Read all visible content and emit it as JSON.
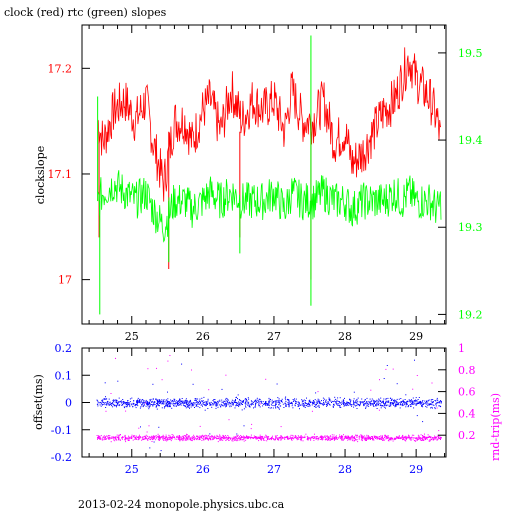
{
  "title": "clock (red) rtc (green) slopes",
  "footer": "2013-02-24 monopole.physics.ubc.ca",
  "colors": {
    "clock": "#ff0000",
    "rtc": "#00ff00",
    "offset": "#0000ff",
    "rndtrip": "#ff00ff",
    "axis": "#000000"
  },
  "chart_data": [
    {
      "type": "line",
      "ylabel": "clockslope",
      "y2label": "",
      "xlim": [
        24.3,
        29.42
      ],
      "ylim": [
        16.958,
        17.241
      ],
      "y2lim": [
        19.189,
        19.532
      ],
      "x_ticks": [
        "25",
        "26",
        "27",
        "28",
        "29"
      ],
      "y_ticks": [
        "17",
        "17.1",
        "17.2"
      ],
      "y2_ticks": [
        "19.2",
        "19.3",
        "19.4",
        "19.5"
      ],
      "series": [
        {
          "axis": "left",
          "points": [
            [
              24.52,
              17.15
            ],
            [
              24.6,
              17.13
            ],
            [
              24.75,
              17.16
            ],
            [
              24.9,
              17.17
            ],
            [
              25.05,
              17.15
            ],
            [
              25.2,
              17.17
            ],
            [
              25.3,
              17.13
            ],
            [
              25.45,
              17.09
            ],
            [
              25.6,
              17.15
            ],
            [
              25.75,
              17.15
            ],
            [
              25.85,
              17.13
            ],
            [
              26.0,
              17.16
            ],
            [
              26.1,
              17.17
            ],
            [
              26.25,
              17.14
            ],
            [
              26.4,
              17.18
            ],
            [
              26.55,
              17.15
            ],
            [
              26.7,
              17.17
            ],
            [
              26.85,
              17.16
            ],
            [
              27.0,
              17.17
            ],
            [
              27.15,
              17.14
            ],
            [
              27.25,
              17.18
            ],
            [
              27.4,
              17.15
            ],
            [
              27.55,
              17.15
            ],
            [
              27.7,
              17.17
            ],
            [
              27.85,
              17.13
            ],
            [
              28.0,
              17.14
            ],
            [
              28.1,
              17.11
            ],
            [
              28.25,
              17.12
            ],
            [
              28.4,
              17.14
            ],
            [
              28.55,
              17.16
            ],
            [
              28.7,
              17.17
            ],
            [
              28.8,
              17.19
            ],
            [
              28.9,
              17.21
            ],
            [
              29.0,
              17.19
            ],
            [
              29.1,
              17.18
            ],
            [
              29.2,
              17.17
            ],
            [
              29.3,
              17.15
            ],
            [
              29.35,
              17.13
            ]
          ],
          "spikes": [
            [
              24.54,
              17.04
            ],
            [
              25.52,
              17.01
            ],
            [
              26.52,
              17.04
            ],
            [
              27.52,
              17.0
            ]
          ]
        },
        {
          "axis": "right",
          "points": [
            [
              24.52,
              19.33
            ],
            [
              24.6,
              19.34
            ],
            [
              24.75,
              19.35
            ],
            [
              24.9,
              19.34
            ],
            [
              25.05,
              19.33
            ],
            [
              25.2,
              19.34
            ],
            [
              25.3,
              19.32
            ],
            [
              25.45,
              19.3
            ],
            [
              25.6,
              19.33
            ],
            [
              25.75,
              19.33
            ],
            [
              25.85,
              19.32
            ],
            [
              26.0,
              19.33
            ],
            [
              26.1,
              19.34
            ],
            [
              26.25,
              19.33
            ],
            [
              26.4,
              19.34
            ],
            [
              26.55,
              19.33
            ],
            [
              26.7,
              19.33
            ],
            [
              26.85,
              19.33
            ],
            [
              27.0,
              19.34
            ],
            [
              27.15,
              19.32
            ],
            [
              27.25,
              19.34
            ],
            [
              27.4,
              19.33
            ],
            [
              27.55,
              19.33
            ],
            [
              27.7,
              19.34
            ],
            [
              27.85,
              19.33
            ],
            [
              28.0,
              19.33
            ],
            [
              28.1,
              19.32
            ],
            [
              28.25,
              19.33
            ],
            [
              28.4,
              19.33
            ],
            [
              28.55,
              19.33
            ],
            [
              28.7,
              19.34
            ],
            [
              28.8,
              19.33
            ],
            [
              28.9,
              19.34
            ],
            [
              29.0,
              19.33
            ],
            [
              29.1,
              19.33
            ],
            [
              29.2,
              19.33
            ],
            [
              29.3,
              19.32
            ],
            [
              29.35,
              19.33
            ]
          ],
          "spikes": [
            [
              24.55,
              19.2
            ],
            [
              24.52,
              19.45
            ],
            [
              25.52,
              19.26
            ],
            [
              26.52,
              19.27
            ],
            [
              27.52,
              19.21
            ],
            [
              27.52,
              19.52
            ]
          ]
        }
      ]
    },
    {
      "type": "scatter",
      "ylabel": "offset(ms)",
      "y2label": "rnd-trip(ms)",
      "xlim": [
        24.3,
        29.42
      ],
      "ylim": [
        -0.2,
        0.2
      ],
      "y2lim": [
        0.0,
        1.0
      ],
      "x_ticks": [
        "25",
        "26",
        "27",
        "28",
        "29"
      ],
      "y_ticks": [
        "-0.2",
        "-0.1",
        "0",
        "0.1",
        "0.2"
      ],
      "y2_ticks": [
        "0.2",
        "0.4",
        "0.6",
        "0.8",
        "1"
      ],
      "series": [
        {
          "axis": "left",
          "x_range": [
            24.5,
            29.35
          ],
          "center": 0.0,
          "spread": 0.012
        },
        {
          "axis": "right",
          "x_range": [
            24.5,
            29.35
          ],
          "center": 0.18,
          "spread": 0.018
        }
      ]
    }
  ]
}
